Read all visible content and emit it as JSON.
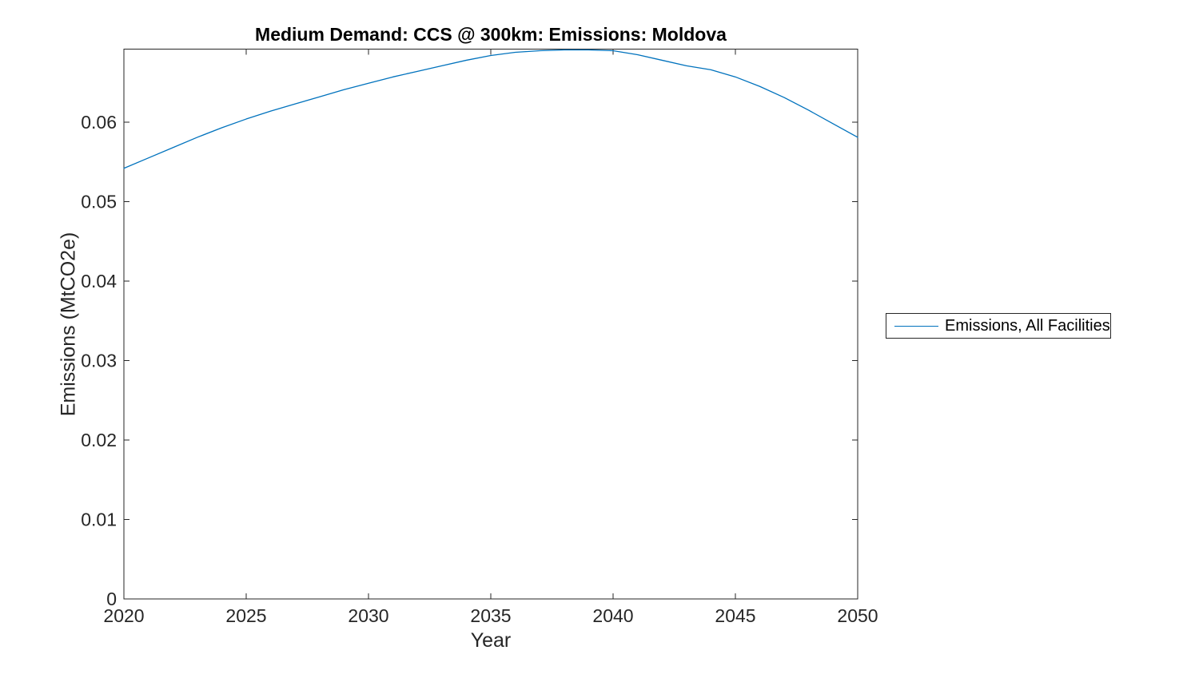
{
  "chart_data": {
    "type": "line",
    "title": "Medium Demand: CCS @ 300km: Emissions: Moldova",
    "xlabel": "Year",
    "ylabel": "Emissions (MtCO2e)",
    "grid": false,
    "box": true,
    "axis_color": "#262626",
    "text_color": "#262626",
    "xlim": [
      2020,
      2050
    ],
    "ylim": [
      0,
      0.0692
    ],
    "xticks": {
      "values": [
        2020,
        2025,
        2030,
        2035,
        2040,
        2045,
        2050
      ],
      "labels": [
        "2020",
        "2025",
        "2030",
        "2035",
        "2040",
        "2045",
        "2050"
      ]
    },
    "yticks": {
      "values": [
        0,
        0.01,
        0.02,
        0.03,
        0.04,
        0.05,
        0.06
      ],
      "labels": [
        "0",
        "0.01",
        "0.02",
        "0.03",
        "0.04",
        "0.05",
        "0.06"
      ]
    },
    "x": [
      2020,
      2021,
      2022,
      2023,
      2024,
      2025,
      2026,
      2027,
      2028,
      2029,
      2030,
      2031,
      2032,
      2033,
      2034,
      2035,
      2036,
      2037,
      2038,
      2039,
      2040,
      2041,
      2042,
      2043,
      2044,
      2045,
      2046,
      2047,
      2048,
      2049,
      2050
    ],
    "series": [
      {
        "name": "Emissions, All Facilities",
        "color": "#0072BD",
        "values": [
          0.0542,
          0.0555,
          0.0568,
          0.0581,
          0.0593,
          0.0604,
          0.0614,
          0.0623,
          0.0632,
          0.0641,
          0.0649,
          0.0657,
          0.0664,
          0.0671,
          0.0678,
          0.0684,
          0.0688,
          0.069,
          0.0691,
          0.0691,
          0.069,
          0.0685,
          0.0678,
          0.0671,
          0.0666,
          0.0657,
          0.0645,
          0.0631,
          0.0615,
          0.0598,
          0.0581
        ]
      }
    ],
    "legend": {
      "position": "outside-right",
      "entries": [
        {
          "label": "Emissions, All Facilities",
          "color": "#0072BD"
        }
      ]
    }
  }
}
